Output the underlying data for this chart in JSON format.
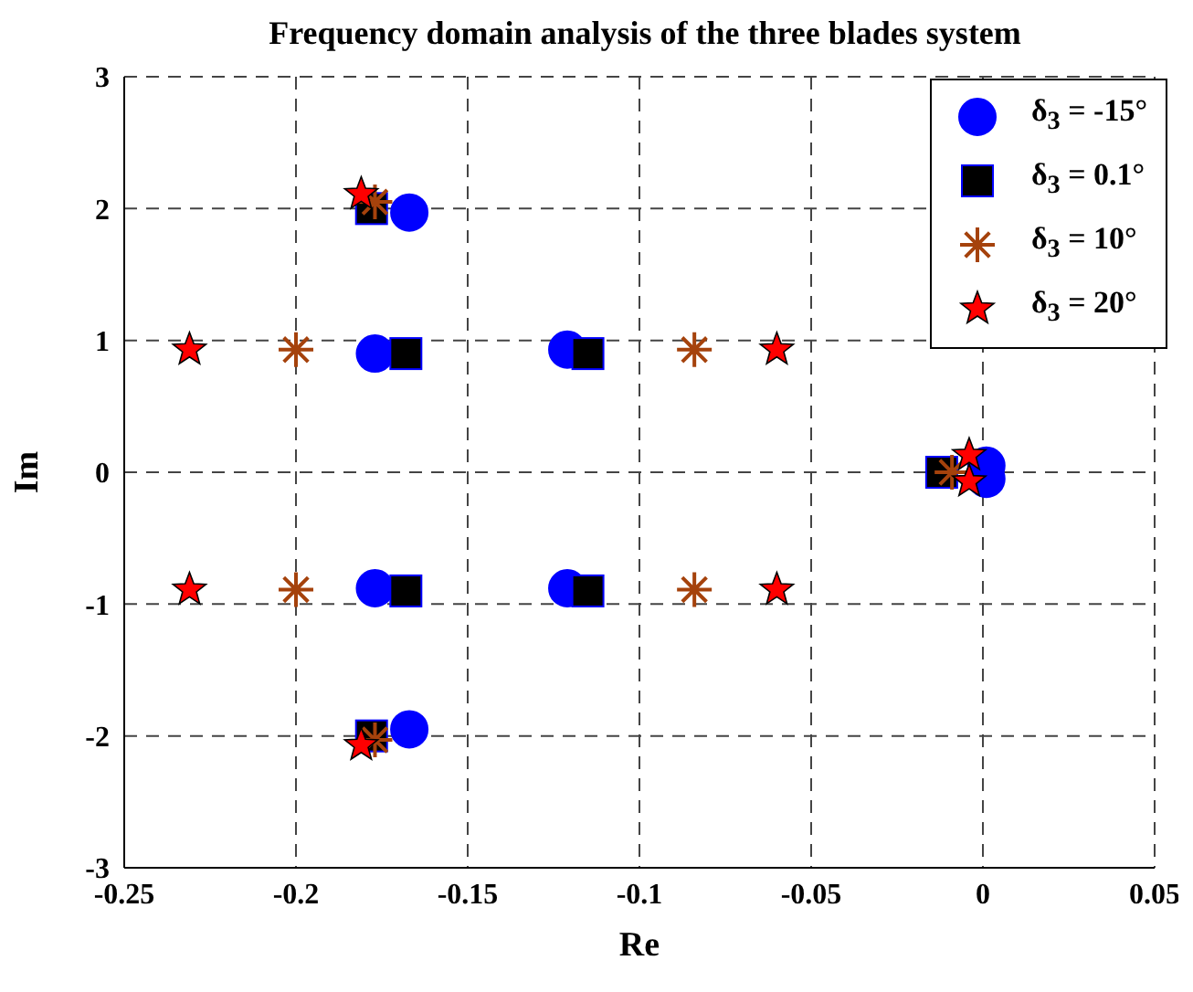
{
  "chart_data": {
    "type": "scatter",
    "title": "Frequency domain analysis of the three blades system",
    "xlabel": "Re",
    "ylabel": "Im",
    "xlim": [
      -0.25,
      0.05
    ],
    "xticks": [
      -0.25,
      -0.2,
      -0.15,
      -0.1,
      -0.05,
      0,
      0.05
    ],
    "ylim": [
      -3,
      3
    ],
    "yticks": [
      -3,
      -2,
      -1,
      0,
      1,
      2,
      3
    ],
    "grid": true,
    "legend": "top right",
    "series": [
      {
        "name": "δ$_{3}$ = -15°",
        "color": "#0000ff",
        "marker": "circle",
        "x": [
          -0.167,
          -0.177,
          -0.121,
          -0.177,
          -0.121,
          -0.167,
          0.001,
          0.001
        ],
        "values": [
          1.97,
          0.9,
          0.93,
          -0.88,
          -0.88,
          -1.95,
          0.05,
          -0.05
        ]
      },
      {
        "name": "δ$_{3}$ = 0.1°",
        "color": "#000000",
        "marker": "square",
        "x": [
          -0.178,
          -0.168,
          -0.115,
          -0.168,
          -0.115,
          -0.178,
          -0.012
        ],
        "values": [
          2.0,
          0.9,
          0.9,
          -0.9,
          -0.9,
          -2.0,
          0.0
        ]
      },
      {
        "name": "δ$_{3}$ = 10°",
        "color": "#a5420c",
        "marker": "cross",
        "x": [
          -0.177,
          -0.2,
          -0.084,
          -0.2,
          -0.084,
          -0.177,
          -0.009
        ],
        "values": [
          2.05,
          0.93,
          0.93,
          -0.89,
          -0.89,
          -2.03,
          0.0
        ]
      },
      {
        "name": "δ$_{3}$ = 20°",
        "color": "#ff0000",
        "marker": "star",
        "x": [
          -0.181,
          -0.231,
          -0.06,
          -0.231,
          -0.06,
          -0.181,
          -0.004,
          -0.004
        ],
        "values": [
          2.11,
          0.93,
          0.93,
          -0.89,
          -0.89,
          -2.07,
          0.13,
          -0.07
        ]
      }
    ]
  }
}
